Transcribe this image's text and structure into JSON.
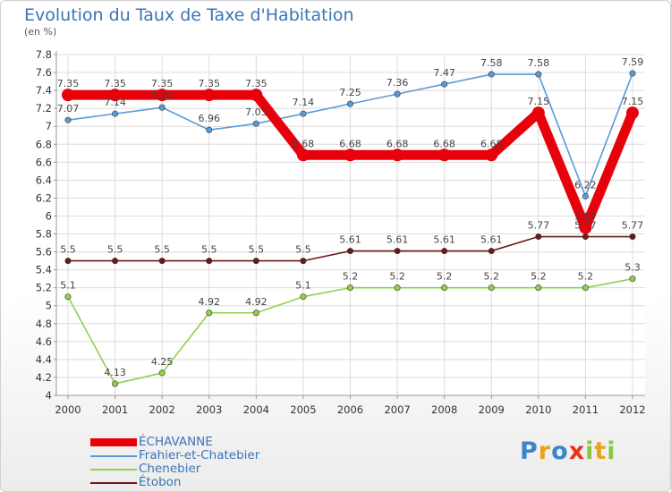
{
  "title": "Evolution du Taux de Taxe d'Habitation",
  "subtitle": "(en %)",
  "logo": {
    "letters": [
      {
        "char": "P",
        "color": "#3a86c8"
      },
      {
        "char": "r",
        "color": "#e8a31a"
      },
      {
        "char": "o",
        "color": "#3a86c8"
      },
      {
        "char": "x",
        "color": "#e8321e"
      },
      {
        "char": "i",
        "color": "#8cc63f"
      },
      {
        "char": "t",
        "color": "#e8a31a"
      },
      {
        "char": "i",
        "color": "#8cc63f"
      }
    ]
  },
  "chart_data": {
    "type": "line",
    "title": "Evolution du Taux de Taxe d'Habitation",
    "subtitle": "(en %)",
    "x": [
      "2000",
      "2001",
      "2002",
      "2003",
      "2004",
      "2005",
      "2006",
      "2007",
      "2008",
      "2009",
      "2010",
      "2011",
      "2012"
    ],
    "ylim": [
      4,
      7.8
    ],
    "yticks": [
      "4",
      "4.2",
      "4.4",
      "4.6",
      "4.8",
      "5",
      "5.2",
      "5.4",
      "5.6",
      "5.8",
      "6",
      "6.2",
      "6.4",
      "6.6",
      "6.8",
      "7",
      "7.2",
      "7.4",
      "7.6",
      "7.8"
    ],
    "grid": true,
    "legend_position": "bottom-left",
    "series": [
      {
        "name": "ÉCHAVANNE",
        "color": "#e8000b",
        "values": [
          7.35,
          7.35,
          7.35,
          7.35,
          7.35,
          6.68,
          6.68,
          6.68,
          6.68,
          6.68,
          7.15,
          5.87,
          7.15
        ],
        "labels": [
          "7.35",
          "7.35",
          "7.35",
          "7.35",
          "7.35",
          "6.68",
          "6.68",
          "6.68",
          "6.68",
          "6.68",
          "7.15",
          "5.87",
          "7.15"
        ]
      },
      {
        "name": "Frahier-et-Chatebier",
        "color": "#5b9bd5",
        "values": [
          7.07,
          7.14,
          7.21,
          6.96,
          7.03,
          7.14,
          7.25,
          7.36,
          7.47,
          7.58,
          7.58,
          6.22,
          7.59
        ],
        "labels": [
          "7.07",
          "7.14",
          "7.21",
          "6.96",
          "7.03",
          "7.14",
          "7.25",
          "7.36",
          "7.47",
          "7.58",
          "7.58",
          "6.22",
          "7.59"
        ]
      },
      {
        "name": "Chenebier",
        "color": "#8fd14f",
        "values": [
          5.1,
          4.13,
          4.25,
          4.92,
          4.92,
          5.1,
          5.2,
          5.2,
          5.2,
          5.2,
          5.2,
          5.2,
          5.3
        ],
        "labels": [
          "5.1",
          "4.13",
          "4.25",
          "4.92",
          "4.92",
          "5.1",
          "5.2",
          "5.2",
          "5.2",
          "5.2",
          "5.2",
          "5.2",
          "5.3"
        ]
      },
      {
        "name": "Étobon",
        "color": "#6b1a1a",
        "values": [
          5.5,
          5.5,
          5.5,
          5.5,
          5.5,
          5.5,
          5.61,
          5.61,
          5.61,
          5.61,
          5.77,
          5.77,
          5.77
        ],
        "labels": [
          "5.5",
          "5.5",
          "5.5",
          "5.5",
          "5.5",
          "5.5",
          "5.61",
          "5.61",
          "5.61",
          "5.61",
          "5.77",
          "5.77",
          "5.77"
        ]
      }
    ]
  }
}
